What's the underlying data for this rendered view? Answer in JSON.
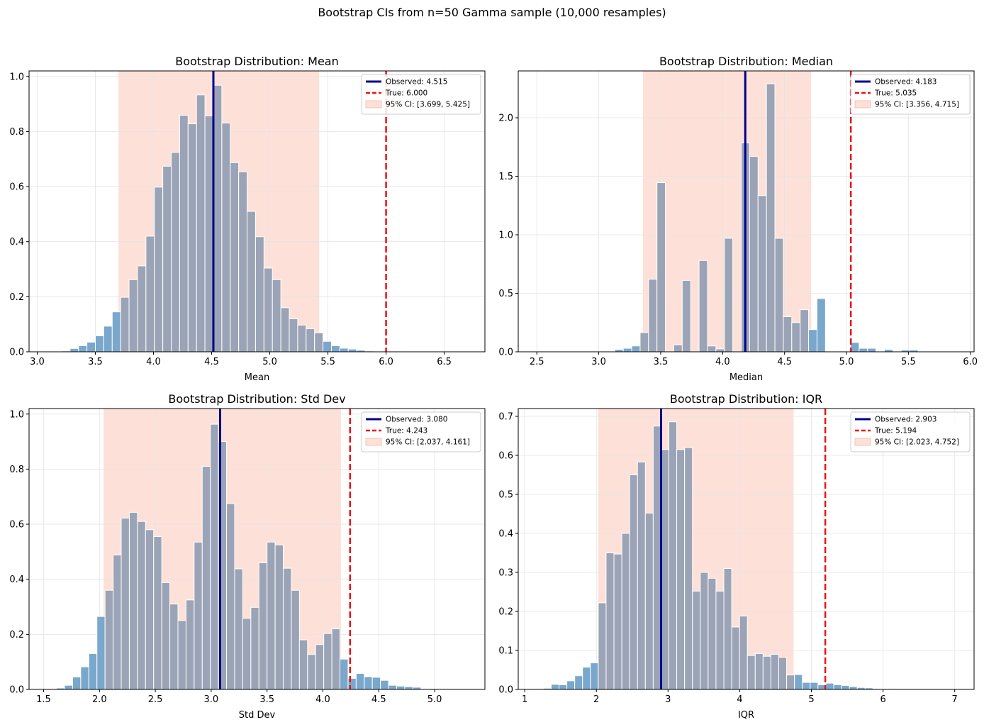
{
  "figure": {
    "title": "Bootstrap CIs from n=50 Gamma sample (10,000 resamples)"
  },
  "colors": {
    "hist_outside": "#7aa7cc",
    "hist_inside": "#9ba4b6",
    "hist_edge": "#ffffff",
    "ci_fill": "#fde1d8",
    "observed": "#00008b",
    "true": "#ee1111",
    "grid": "#e4e4e4"
  },
  "chart_data": [
    {
      "type": "histogram",
      "title": "Bootstrap Distribution: Mean",
      "xlabel": "Mean",
      "ylabel": "",
      "xlim": [
        2.93,
        6.85
      ],
      "ylim": [
        0,
        1.02
      ],
      "xticks": [
        3.0,
        3.5,
        4.0,
        4.5,
        5.0,
        5.5,
        6.0,
        6.5
      ],
      "xtick_labels": [
        "3.0",
        "3.5",
        "4.0",
        "4.5",
        "5.0",
        "5.5",
        "6.0",
        "6.5"
      ],
      "yticks": [
        0,
        0.2,
        0.4,
        0.6,
        0.8,
        1.0
      ],
      "ytick_labels": [
        "0.0",
        "0.2",
        "0.4",
        "0.6",
        "0.8",
        "1.0"
      ],
      "bin_start": 3.21,
      "bin_width": 0.0725,
      "values": [
        0.003,
        0.012,
        0.022,
        0.035,
        0.058,
        0.093,
        0.145,
        0.198,
        0.262,
        0.312,
        0.42,
        0.598,
        0.674,
        0.724,
        0.859,
        0.828,
        0.933,
        0.857,
        0.968,
        0.831,
        0.687,
        0.654,
        0.51,
        0.418,
        0.304,
        0.262,
        0.16,
        0.12,
        0.097,
        0.084,
        0.069,
        0.038,
        0.022,
        0.013,
        0.01,
        0.006,
        0.003,
        0.002,
        0.001,
        0.001,
        0.001
      ],
      "observed": 4.515,
      "true": 6.0,
      "ci": [
        3.699,
        5.425
      ],
      "legend": [
        "Observed: 4.515",
        "True: 6.000",
        "95% CI: [3.699, 5.425]"
      ],
      "legend_loc": "upper right",
      "grid": true
    },
    {
      "type": "histogram",
      "title": "Bootstrap Distribution: Median",
      "xlabel": "Median",
      "ylabel": "",
      "xlim": [
        2.35,
        6.03
      ],
      "ylim": [
        0,
        2.4
      ],
      "xticks": [
        2.5,
        3.0,
        3.5,
        4.0,
        4.5,
        5.0,
        5.5,
        6.0
      ],
      "xtick_labels": [
        "2.5",
        "3.0",
        "3.5",
        "4.0",
        "4.5",
        "5.0",
        "5.5",
        "6.0"
      ],
      "yticks": [
        0,
        0.5,
        1.0,
        1.5,
        2.0
      ],
      "ytick_labels": [
        "0.0",
        "0.5",
        "1.0",
        "1.5",
        "2.0"
      ],
      "bin_start": 2.45,
      "bin_width": 0.068,
      "values": [
        0.002,
        0.0,
        0.0,
        0.0,
        0.0,
        0.0,
        0.0,
        0.0,
        0.0,
        0.005,
        0.02,
        0.03,
        0.05,
        0.165,
        0.62,
        1.445,
        0.0,
        0.06,
        0.61,
        0.0,
        0.78,
        0.05,
        0.025,
        0.97,
        0.0,
        1.785,
        1.67,
        1.335,
        2.29,
        0.97,
        0.3,
        0.25,
        0.36,
        0.19,
        0.455,
        0.0,
        0.0,
        0.0,
        0.08,
        0.03,
        0.03,
        0.0,
        0.02,
        0.0,
        0.015,
        0.015,
        0.0,
        0.0,
        0.0,
        0.0,
        0.003
      ],
      "observed": 4.183,
      "true": 5.035,
      "ci": [
        3.356,
        4.715
      ],
      "legend": [
        "Observed: 4.183",
        "True: 5.035",
        "95% CI: [3.356, 4.715]"
      ],
      "legend_loc": "upper right",
      "grid": true
    },
    {
      "type": "histogram",
      "title": "Bootstrap Distribution: Std Dev",
      "xlabel": "Std Dev",
      "ylabel": "",
      "xlim": [
        1.37,
        5.45
      ],
      "ylim": [
        0,
        1.02
      ],
      "xticks": [
        1.5,
        2.0,
        2.5,
        3.0,
        3.5,
        4.0,
        4.5,
        5.0
      ],
      "xtick_labels": [
        "1.5",
        "2.0",
        "2.5",
        "3.0",
        "3.5",
        "4.0",
        "4.5",
        "5.0"
      ],
      "yticks": [
        0,
        0.2,
        0.4,
        0.6,
        0.8,
        1.0
      ],
      "ytick_labels": [
        "0.0",
        "0.2",
        "0.4",
        "0.6",
        "0.8",
        "1.0"
      ],
      "bin_start": 1.47,
      "bin_width": 0.0725,
      "values": [
        0.0,
        0.002,
        0.005,
        0.015,
        0.045,
        0.082,
        0.13,
        0.265,
        0.36,
        0.488,
        0.622,
        0.643,
        0.61,
        0.58,
        0.555,
        0.388,
        0.31,
        0.25,
        0.325,
        0.535,
        0.81,
        0.963,
        0.9,
        0.675,
        0.438,
        0.258,
        0.298,
        0.46,
        0.535,
        0.525,
        0.44,
        0.36,
        0.18,
        0.127,
        0.163,
        0.203,
        0.22,
        0.11,
        0.04,
        0.058,
        0.046,
        0.044,
        0.033,
        0.015,
        0.012,
        0.01,
        0.008,
        0.002,
        0.003,
        0.002
      ],
      "observed": 3.08,
      "true": 4.243,
      "ci": [
        2.037,
        4.161
      ],
      "legend": [
        "Observed: 3.080",
        "True: 4.243",
        "95% CI: [2.037, 4.161]"
      ],
      "legend_loc": "upper right",
      "grid": true
    },
    {
      "type": "histogram",
      "title": "Bootstrap Distribution: IQR",
      "xlabel": "IQR",
      "ylabel": "",
      "xlim": [
        0.91,
        7.27
      ],
      "ylim": [
        0,
        0.72
      ],
      "xticks": [
        1,
        2,
        3,
        4,
        5,
        6,
        7
      ],
      "xtick_labels": [
        "1",
        "2",
        "3",
        "4",
        "5",
        "6",
        "7"
      ],
      "yticks": [
        0,
        0.1,
        0.2,
        0.3,
        0.4,
        0.5,
        0.6,
        0.7
      ],
      "ytick_labels": [
        "0.0",
        "0.1",
        "0.2",
        "0.3",
        "0.4",
        "0.5",
        "0.6",
        "0.7"
      ],
      "bin_start": 1.26,
      "bin_width": 0.1095,
      "values": [
        0.003,
        0.013,
        0.012,
        0.022,
        0.035,
        0.057,
        0.068,
        0.222,
        0.35,
        0.347,
        0.4,
        0.55,
        0.583,
        0.452,
        0.675,
        0.615,
        0.686,
        0.615,
        0.62,
        0.252,
        0.3,
        0.285,
        0.252,
        0.31,
        0.16,
        0.188,
        0.087,
        0.092,
        0.085,
        0.09,
        0.082,
        0.037,
        0.038,
        0.018,
        0.018,
        0.012,
        0.016,
        0.012,
        0.01,
        0.007,
        0.005,
        0.004,
        0.002,
        0.001,
        0.002,
        0.0,
        0.001,
        0.001,
        0.0,
        0.001
      ],
      "observed": 2.903,
      "true": 5.194,
      "ci": [
        2.023,
        4.752
      ],
      "legend": [
        "Observed: 2.903",
        "True: 5.194",
        "95% CI: [2.023, 4.752]"
      ],
      "legend_loc": "upper right",
      "grid": true
    }
  ]
}
